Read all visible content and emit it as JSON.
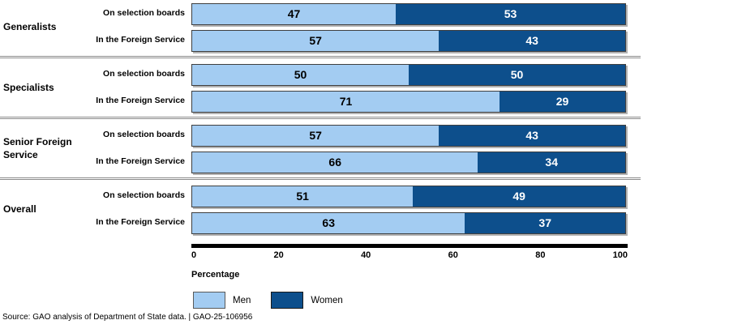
{
  "chart_data": {
    "type": "bar",
    "orientation": "horizontal",
    "stacked": true,
    "series_names": [
      "Men",
      "Women"
    ],
    "groups": [
      {
        "label": "Generalists",
        "rows": [
          {
            "label": "On selection boards",
            "men": 47,
            "women": 53
          },
          {
            "label": "In the Foreign Service",
            "men": 57,
            "women": 43
          }
        ]
      },
      {
        "label": "Specialists",
        "rows": [
          {
            "label": "On selection boards",
            "men": 50,
            "women": 50
          },
          {
            "label": "In the Foreign Service",
            "men": 71,
            "women": 29
          }
        ]
      },
      {
        "label": "Senior Foreign Service",
        "rows": [
          {
            "label": "On selection boards",
            "men": 57,
            "women": 43
          },
          {
            "label": "In the Foreign Service",
            "men": 66,
            "women": 34
          }
        ]
      },
      {
        "label": "Overall",
        "rows": [
          {
            "label": "On selection boards",
            "men": 51,
            "women": 49
          },
          {
            "label": "In the Foreign Service",
            "men": 63,
            "women": 37
          }
        ]
      }
    ],
    "x_ticks": [
      "0",
      "20",
      "40",
      "60",
      "80",
      "100"
    ],
    "xlim": [
      0,
      100
    ],
    "xlabel": "Percentage",
    "legend_position": "bottom",
    "grid": false
  },
  "colors": {
    "men": "#A3CCF2",
    "women": "#0D4F8C"
  },
  "legend": {
    "men_label": "Men",
    "women_label": "Women"
  },
  "source_line": "Source: GAO analysis of Department of State data.  |  GAO-25-106956"
}
